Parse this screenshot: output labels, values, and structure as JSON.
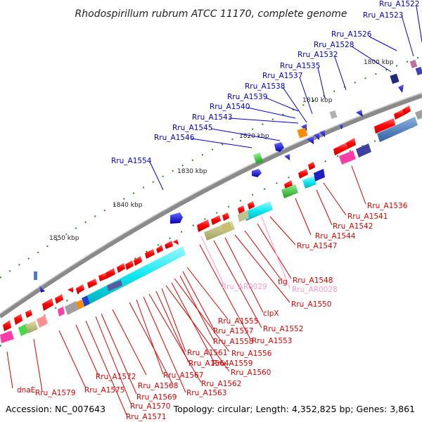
{
  "title": "Rhodospirillum rubrum ATCC 11170, complete genome",
  "accession": "Accession: NC_007643",
  "summary": "Topology: circular; Length: 4,352,825 bp; Genes: 3,861",
  "kbp_labels": [
    "1800 kbp",
    "1810 kbp",
    "1820 kbp",
    "1830 kbp",
    "1840 kbp",
    "1850 kbp"
  ],
  "blue_labels": [
    "Rru_A1522",
    "Rru_A1523",
    "Rru_A1526",
    "Rru_A1528",
    "Rru_A1532",
    "Rru_A1535",
    "Rru_A1537",
    "Rru_A1538",
    "Rru_A1539",
    "Rru_A1540",
    "Rru_A1543",
    "Rru_A1545",
    "Rru_A1546",
    "Rru_A1554"
  ],
  "red_labels": [
    "Rru_A1536",
    "Rru_A1541",
    "Rru_A1542",
    "Rru_A1544",
    "Rru_A1547",
    "Rru_A1548",
    "tig",
    "Rru_A1550",
    "clpX",
    "Rru_A1552",
    "Rru_A1553",
    "Rru_A1555",
    "Rru_A1557",
    "Rru_A1558",
    "Rru_A1556",
    "Rru_A1559",
    "Rru_A1560",
    "Rru_A1561",
    "Rru_A1564",
    "Rru_A1562",
    "Rru_A1563",
    "Rru_A1567",
    "Rru_A1568",
    "Rru_A1569",
    "Rru_A1570",
    "Rru_A1571",
    "Rru_A1572",
    "Rru_A1575",
    "Rru_A1579",
    "dnaE"
  ],
  "pink_labels": [
    "Rru_AR0029",
    "Rru_AR0028"
  ],
  "colors": {
    "backbone": "#8a8a8a",
    "forward_gene": "#1010d0",
    "reverse_gene": "#e01010",
    "gc_skew": "#228b22",
    "blue_label": "#0000cc",
    "red_label": "#dd0000",
    "pink_label": "#ff99cc"
  }
}
